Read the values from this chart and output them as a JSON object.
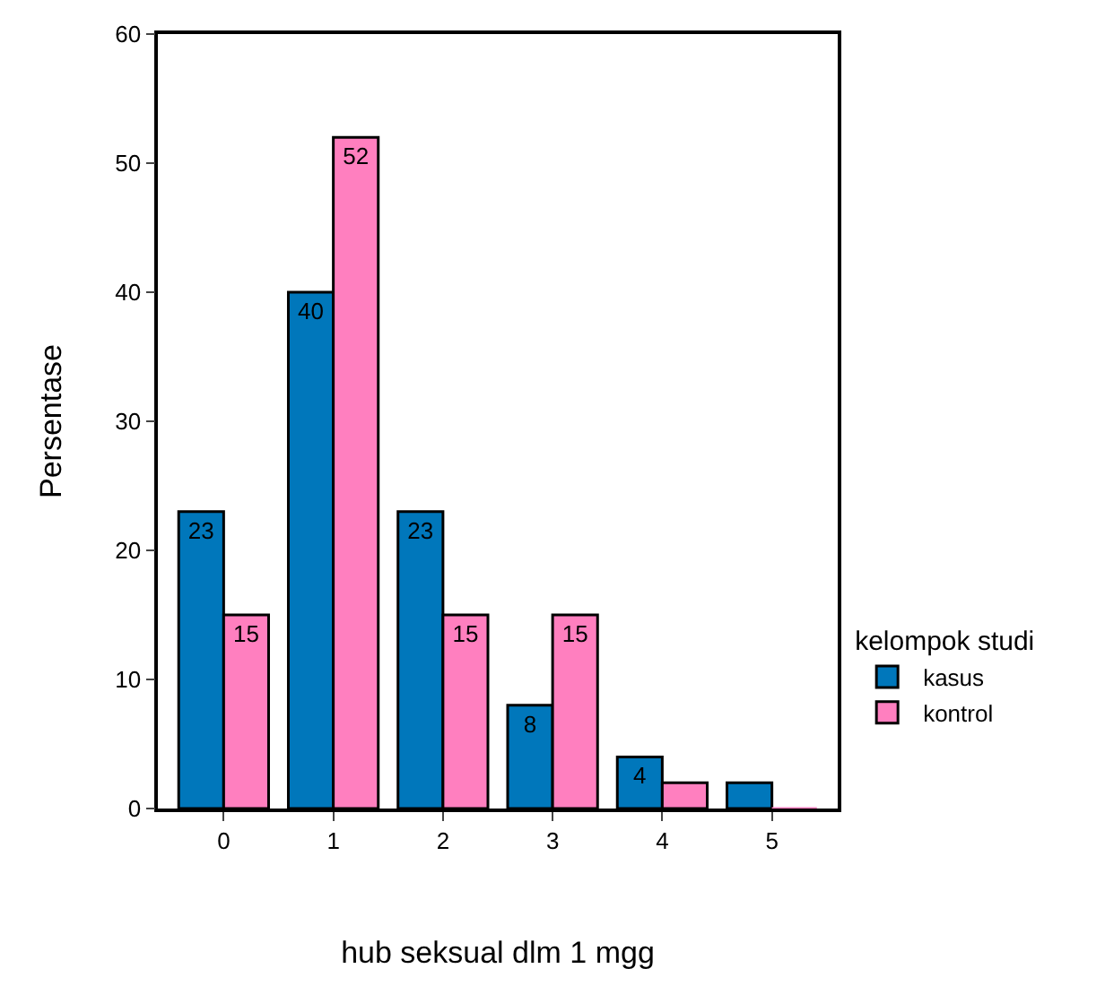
{
  "chart_data": {
    "type": "bar",
    "xlabel": "hub seksual dlm 1 mgg",
    "ylabel": "Persentase",
    "legend_title": "kelompok studi",
    "legend": "right",
    "categories": [
      "0",
      "1",
      "2",
      "3",
      "4",
      "5"
    ],
    "series": [
      {
        "name": "kasus",
        "color": "#0077bb",
        "values": [
          23,
          40,
          23,
          8,
          4,
          2
        ],
        "value_labels": [
          "23",
          "40",
          "23",
          "8",
          "4",
          null
        ]
      },
      {
        "name": "kontrol",
        "color": "#ff7fbf",
        "values": [
          15,
          52,
          15,
          15,
          2,
          0
        ],
        "value_labels": [
          "15",
          "52",
          "15",
          "15",
          null,
          null
        ]
      }
    ],
    "ylim": [
      0,
      60
    ],
    "yticks": [
      0,
      10,
      20,
      30,
      40,
      50,
      60
    ]
  }
}
